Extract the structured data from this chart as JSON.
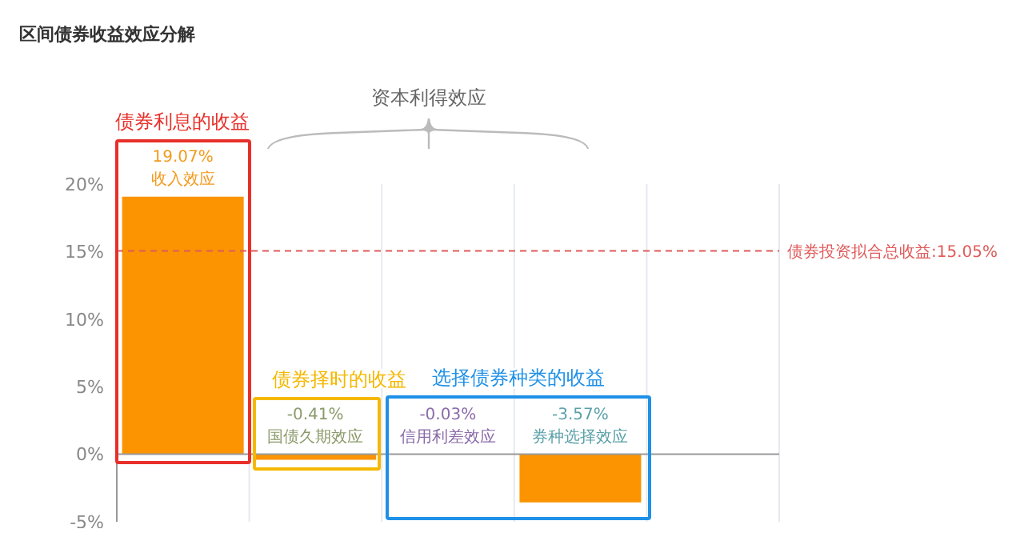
{
  "chart_data": {
    "type": "bar",
    "title": "区间债券收益效应分解",
    "categories": [
      "收入效应",
      "国债久期效应",
      "信用利差效应",
      "券种选择效应",
      null
    ],
    "values": [
      19.07,
      -0.41,
      -0.03,
      -3.57,
      null
    ],
    "value_labels": [
      "19.07%",
      "-0.41%",
      "-0.03%",
      "-3.57%",
      null
    ],
    "color": "#fb9400",
    "ylim": [
      -5,
      20
    ],
    "yticks": [
      {
        "value": -5,
        "label": "-5%"
      },
      {
        "value": 0,
        "label": "0%"
      },
      {
        "value": 5,
        "label": "5%"
      },
      {
        "value": 10,
        "label": "10%"
      },
      {
        "value": 15,
        "label": "15%"
      },
      {
        "value": 20,
        "label": "20%"
      }
    ],
    "grid": "x",
    "legend": false,
    "tick_labels": "y",
    "ref_lines": [
      {
        "axis": "y",
        "value": 15.05,
        "label": "债券投资拟合总收益:15.05%",
        "color": "#e05a5a",
        "line_style": "dashed"
      }
    ],
    "annotations": [
      "资本利得效应",
      "债券利息的收益",
      "债券择时的收益",
      "选择债券种类的收益"
    ]
  }
}
